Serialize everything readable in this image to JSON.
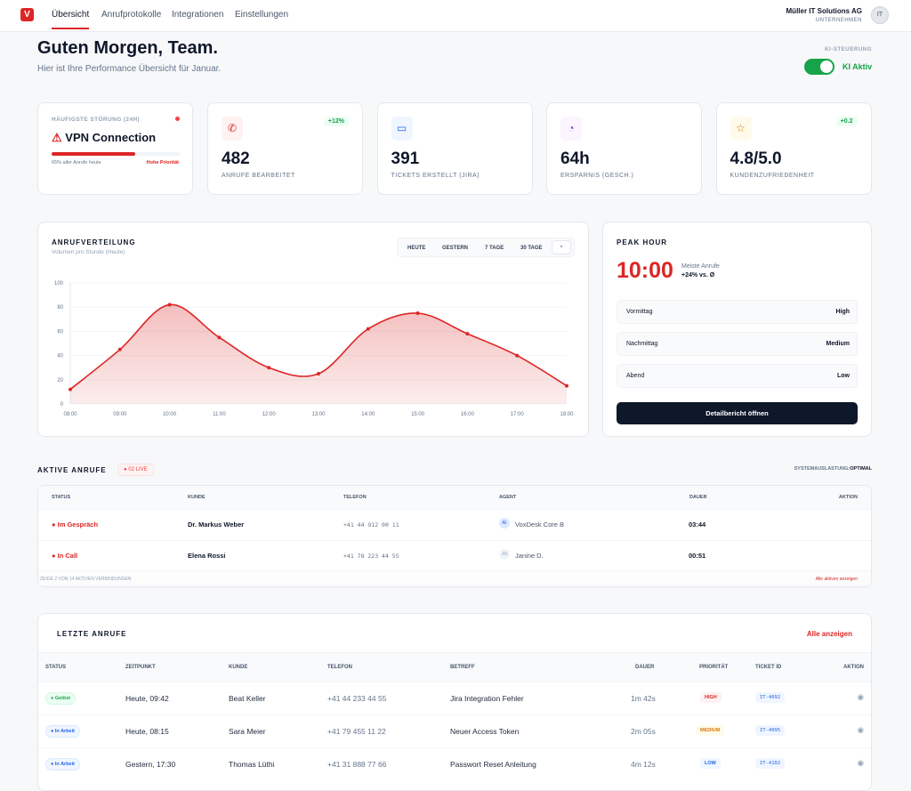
{
  "nav": {
    "logo": "V",
    "items": [
      "Übersicht",
      "Anrufprotokolle",
      "Integrationen",
      "Einstellungen"
    ],
    "org_name": "Müller IT Solutions AG",
    "org_type": "UNTERNEHMEN",
    "avatar": "IT"
  },
  "header": {
    "title": "Guten Morgen, Team.",
    "subtitle": "Hier ist Ihre Performance Übersicht für Januar.",
    "ki_label": "KI-STEUERUNG",
    "ki_status": "KI Aktiv",
    "ki_on": true
  },
  "incident": {
    "label": "HÄUFIGSTE STÖRUNG (24H)",
    "title": "VPN Connection",
    "percent": 65,
    "note": "65% aller Anrufe heute",
    "priority": "Hohe Priorität"
  },
  "kpis": [
    {
      "icon": "phone-icon",
      "glyph": "✆",
      "value": "482",
      "label": "ANRUFE BEARBEITET",
      "badge": "+12%",
      "color": "#dc2626",
      "bg": "#fef2f2"
    },
    {
      "icon": "ticket-icon",
      "glyph": "▭",
      "value": "391",
      "label": "TICKETS ERSTELLT (JIRA)",
      "badge": "",
      "color": "#2563eb",
      "bg": "#eff6ff"
    },
    {
      "icon": "clock-icon",
      "glyph": "◔",
      "value": "64h",
      "label": "ERSPARNIS (GESCH.)",
      "badge": "",
      "color": "#9333ea",
      "bg": "#faf5ff"
    },
    {
      "icon": "star-icon",
      "glyph": "☆",
      "value": "4.8/5.0",
      "label": "KUNDENZUFRIEDENHEIT",
      "badge": "+0.2",
      "color": "#d97706",
      "bg": "#fffbeb"
    }
  ],
  "chart_panel": {
    "title": "ANRUFVERTEILUNG",
    "subtitle": "Volumen pro Stunde (Heute)",
    "filters": [
      "HEUTE",
      "GESTERN",
      "7 TAGE",
      "30 TAGE"
    ]
  },
  "chart_data": {
    "type": "area",
    "x": [
      "08:00",
      "09:00",
      "10:00",
      "11:00",
      "12:00",
      "13:00",
      "14:00",
      "15:00",
      "16:00",
      "17:00",
      "18:00"
    ],
    "values": [
      12,
      45,
      82,
      55,
      30,
      25,
      62,
      75,
      58,
      40,
      15
    ],
    "ylim": [
      0,
      100
    ],
    "yticks": [
      0,
      20,
      40,
      60,
      80,
      100
    ],
    "grid": true,
    "color": "#dc2626"
  },
  "peak": {
    "title": "PEAK HOUR",
    "time": "10:00",
    "desc": "Meiste Anrufe",
    "delta": "+24% vs. Ø",
    "rows": [
      {
        "label": "Vormittag",
        "value": "High"
      },
      {
        "label": "Nachmittag",
        "value": "Medium"
      },
      {
        "label": "Abend",
        "value": "Low"
      }
    ],
    "button": "Detailbericht öffnen"
  },
  "active": {
    "title": "AKTIVE ANRUFE",
    "live": "02 LIVE",
    "load_label": "SYSTEMAUSLASTUNG:",
    "load_value": "OPTIMAL",
    "headers": [
      "STATUS",
      "KUNDE",
      "TELEFON",
      "AGENT",
      "DAUER",
      "AKTION"
    ],
    "rows": [
      {
        "status": "Im Gespräch",
        "customer": "Dr. Markus Weber",
        "phone": "+41 44 912 00 11",
        "agent_initials": "AI",
        "agent": "VoxDesk Core B",
        "duration": "03:44"
      },
      {
        "status": "In Call",
        "customer": "Elena Rossi",
        "phone": "+41 78 223 44 55",
        "agent_initials": "JD",
        "agent": "Janine D.",
        "duration": "00:51"
      }
    ],
    "footer": "ZEIGE 2 VON 14 AKTIVEN VERBINDUNGEN",
    "show_all": "Alle aktiven anzeigen"
  },
  "recent": {
    "title": "LETZTE ANRUFE",
    "show_all": "Alle anzeigen",
    "headers": [
      "STATUS",
      "ZEITPUNKT",
      "KUNDE",
      "TELEFON",
      "BETREFF",
      "DAUER",
      "PRIORITÄT",
      "TICKET ID",
      "AKTION"
    ],
    "rows": [
      {
        "status": "Gelöst",
        "time": "Heute, 09:42",
        "customer": "Beat Keller",
        "phone": "+41 44 233 44 55",
        "subject": "Jira Integration Fehler",
        "duration": "1m 42s",
        "priority": "HIGH",
        "ticket": "IT-4092"
      },
      {
        "status": "In Arbeit",
        "time": "Heute, 08:15",
        "customer": "Sara Meier",
        "phone": "+41 79 455 11 22",
        "subject": "Neuer Access Token",
        "duration": "2m 05s",
        "priority": "MEDIUM",
        "ticket": "IT-4095"
      },
      {
        "status": "In Arbeit",
        "time": "Gestern, 17:30",
        "customer": "Thomas Lüthi",
        "phone": "+41 31 888 77 66",
        "subject": "Passwort Reset Anleitung",
        "duration": "4m 12s",
        "priority": "LOW",
        "ticket": "IT-4102"
      }
    ]
  }
}
